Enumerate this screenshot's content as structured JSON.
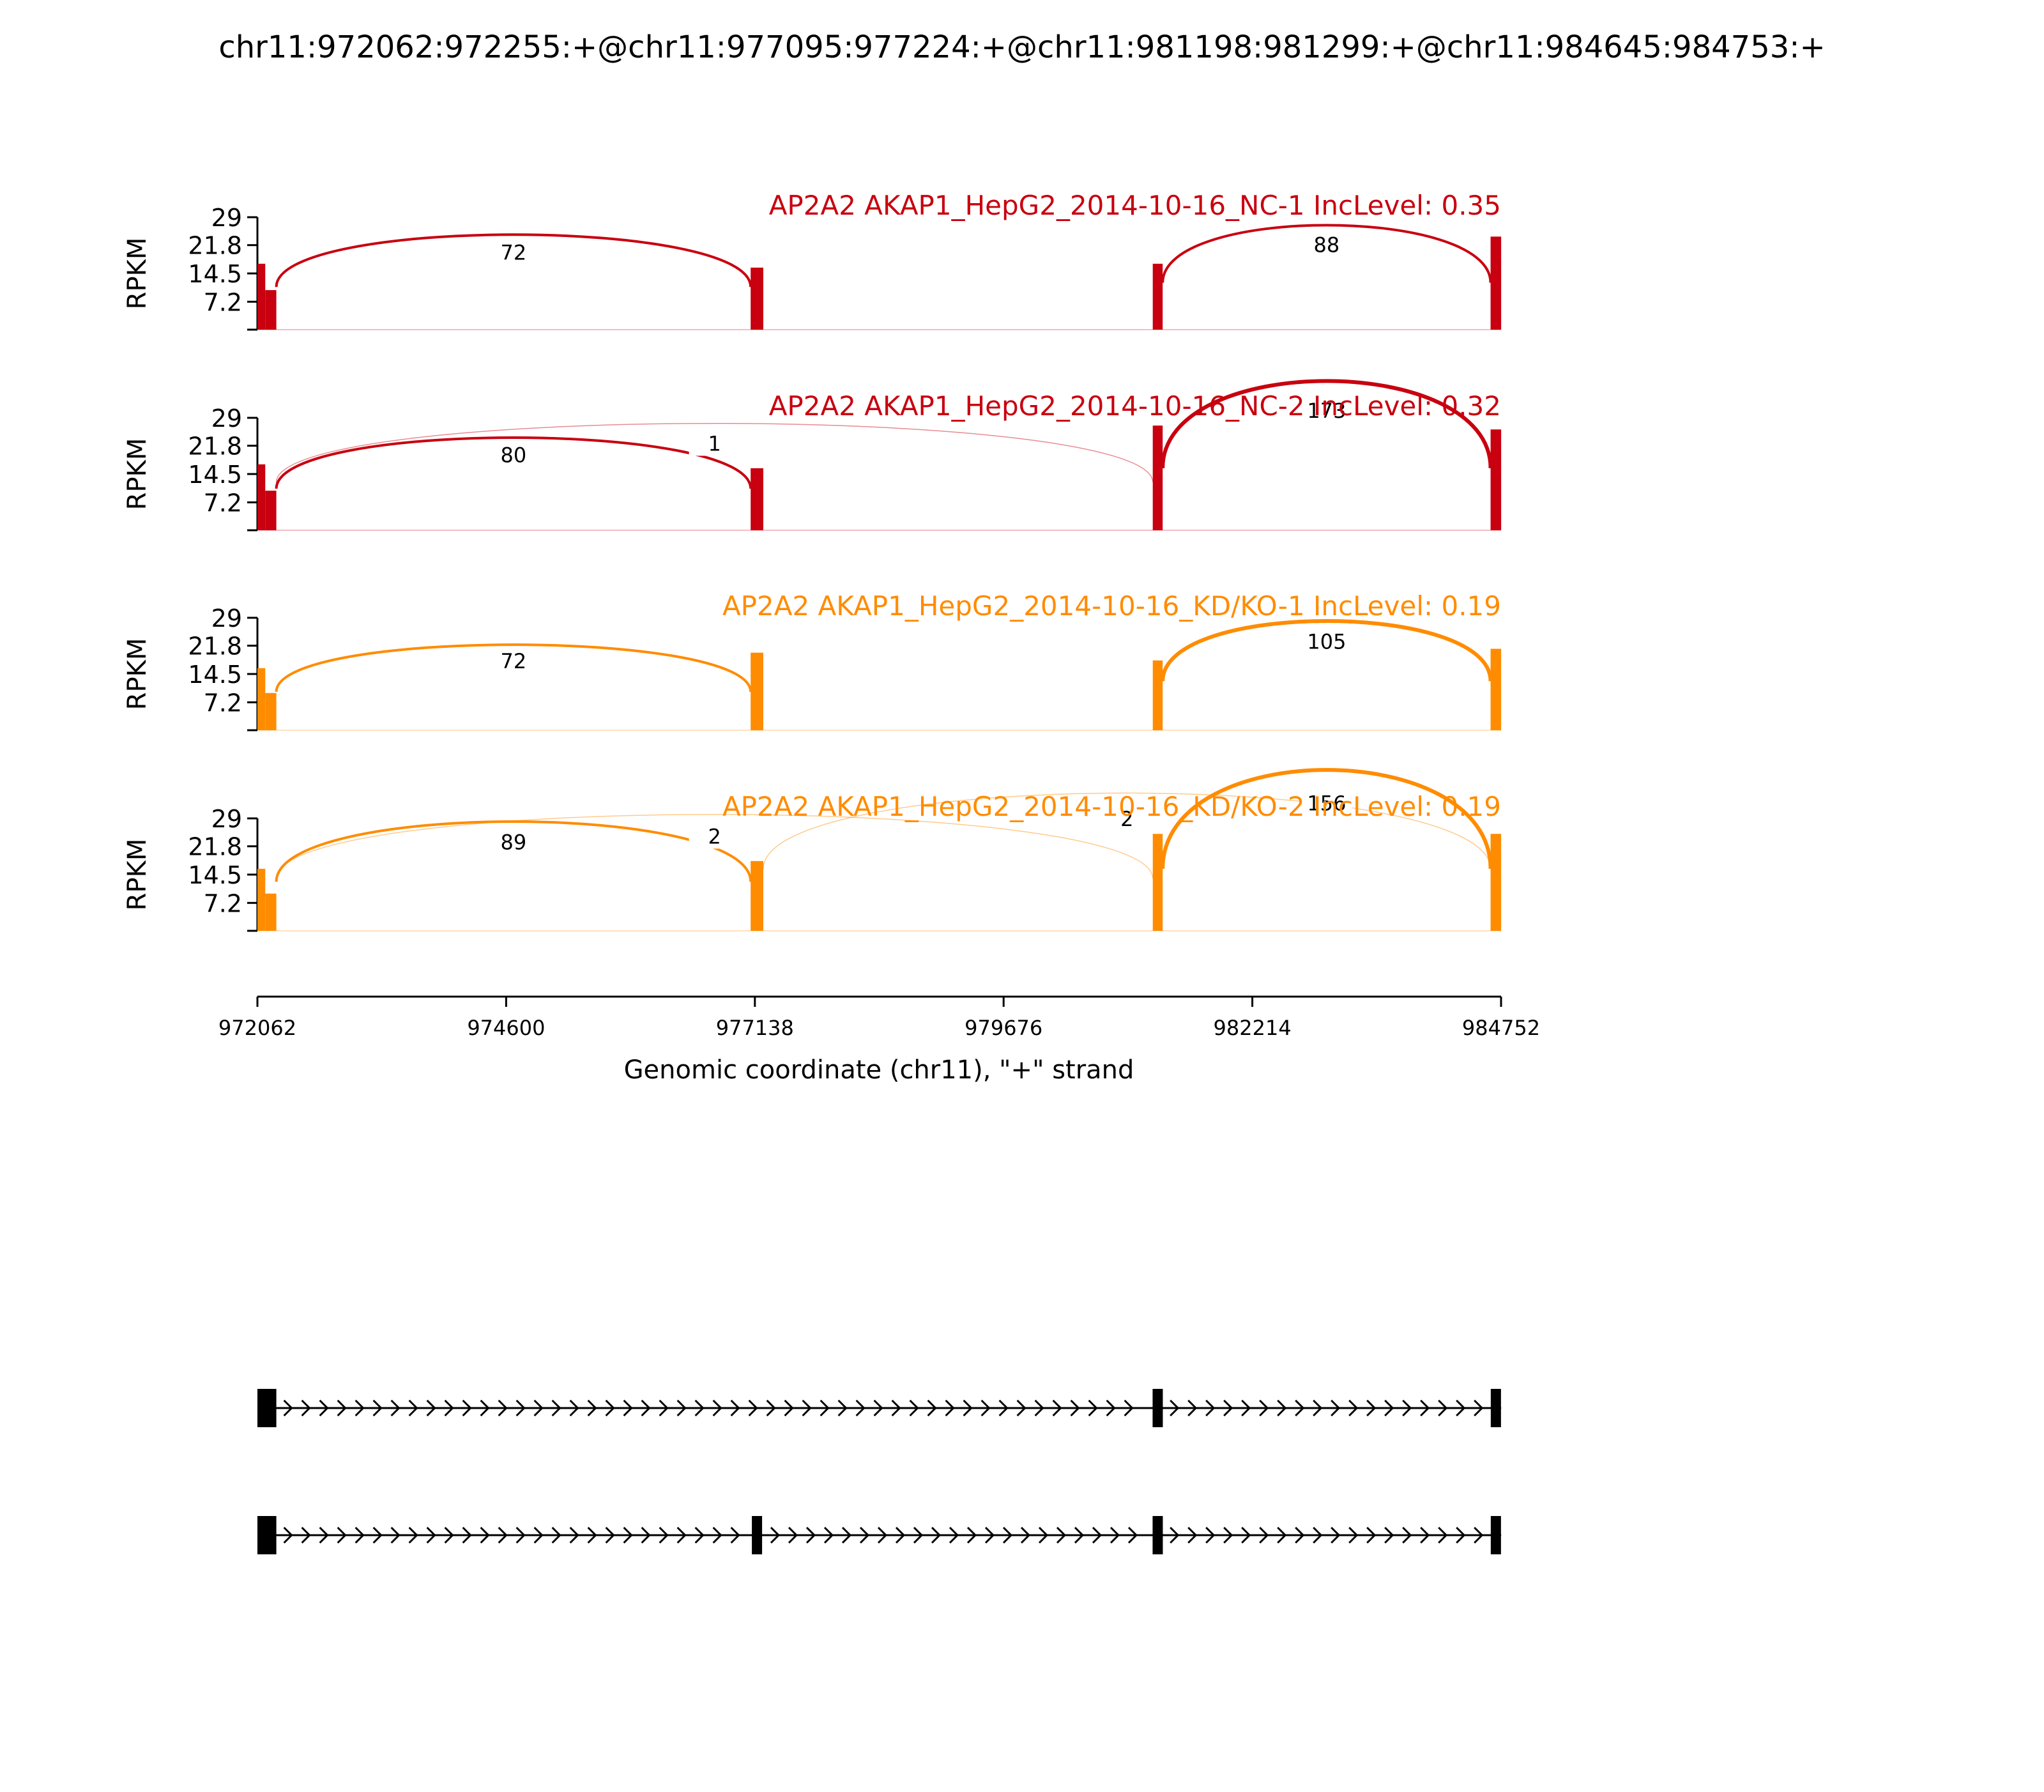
{
  "chart_data": {
    "type": "area",
    "title": "chr11:972062:972255:+@chr11:977095:977224:+@chr11:981198:981299:+@chr11:984645:984753:+",
    "xlabel": "Genomic coordinate (chr11), \"+\" strand",
    "ylabel": "RPKM",
    "xlim": [
      972062,
      984752
    ],
    "x_ticks": [
      972062,
      974600,
      977138,
      979676,
      982214,
      984752
    ],
    "ylim": [
      0,
      29
    ],
    "y_ticks": [
      7.2,
      14.5,
      21.8,
      29
    ],
    "exons": [
      {
        "start": 972062,
        "end": 972255
      },
      {
        "start": 977095,
        "end": 977224
      },
      {
        "start": 981198,
        "end": 981299
      },
      {
        "start": 984645,
        "end": 984753
      }
    ],
    "tracks": [
      {
        "label": "AP2A2 AKAP1_HepG2_2014-10-16_NC-1 IncLevel: 0.35",
        "color": "#c8000f",
        "coverage": [
          17,
          16,
          17,
          21,
          24
        ],
        "junctions": [
          {
            "from": 972255,
            "to": 977095,
            "count": 72,
            "peak": 20.0
          },
          {
            "from": 981299,
            "to": 984645,
            "count": 88,
            "peak": 22.0
          }
        ]
      },
      {
        "label": "AP2A2 AKAP1_HepG2_2014-10-16_NC-2 IncLevel: 0.32",
        "color": "#c8000f",
        "coverage": [
          17,
          16,
          27,
          28,
          26
        ],
        "junctions": [
          {
            "from": 972255,
            "to": 977095,
            "count": 80,
            "peak": 19.5
          },
          {
            "from": 972255,
            "to": 981198,
            "count": 1,
            "peak": 22.5
          },
          {
            "from": 981299,
            "to": 984645,
            "count": 173,
            "peak": 31.0
          }
        ]
      },
      {
        "label": "AP2A2 AKAP1_HepG2_2014-10-16_KD/KO-1 IncLevel: 0.19",
        "color": "#ff8c00",
        "coverage": [
          16,
          20,
          18,
          22,
          21
        ],
        "junctions": [
          {
            "from": 972255,
            "to": 977095,
            "count": 72,
            "peak": 18.0
          },
          {
            "from": 981299,
            "to": 984645,
            "count": 105,
            "peak": 23.0
          }
        ]
      },
      {
        "label": "AP2A2 AKAP1_HepG2_2014-10-16_KD/KO-2 IncLevel: 0.19",
        "color": "#ff8c00",
        "coverage": [
          16,
          18,
          25,
          28,
          25
        ],
        "junctions": [
          {
            "from": 972255,
            "to": 977095,
            "count": 89,
            "peak": 23.0
          },
          {
            "from": 972255,
            "to": 981198,
            "count": 2,
            "peak": 24.5
          },
          {
            "from": 977224,
            "to": 984645,
            "count": 2,
            "peak": 29.0
          },
          {
            "from": 981299,
            "to": 984645,
            "count": 156,
            "peak": 33.0
          }
        ]
      }
    ],
    "isoforms": [
      [
        {
          "start": 972062,
          "end": 972255
        },
        {
          "start": 981198,
          "end": 981299
        },
        {
          "start": 984645,
          "end": 984753
        }
      ],
      [
        {
          "start": 972062,
          "end": 972255
        },
        {
          "start": 977095,
          "end": 977224
        },
        {
          "start": 981198,
          "end": 981299
        },
        {
          "start": 984645,
          "end": 984753
        }
      ]
    ]
  }
}
